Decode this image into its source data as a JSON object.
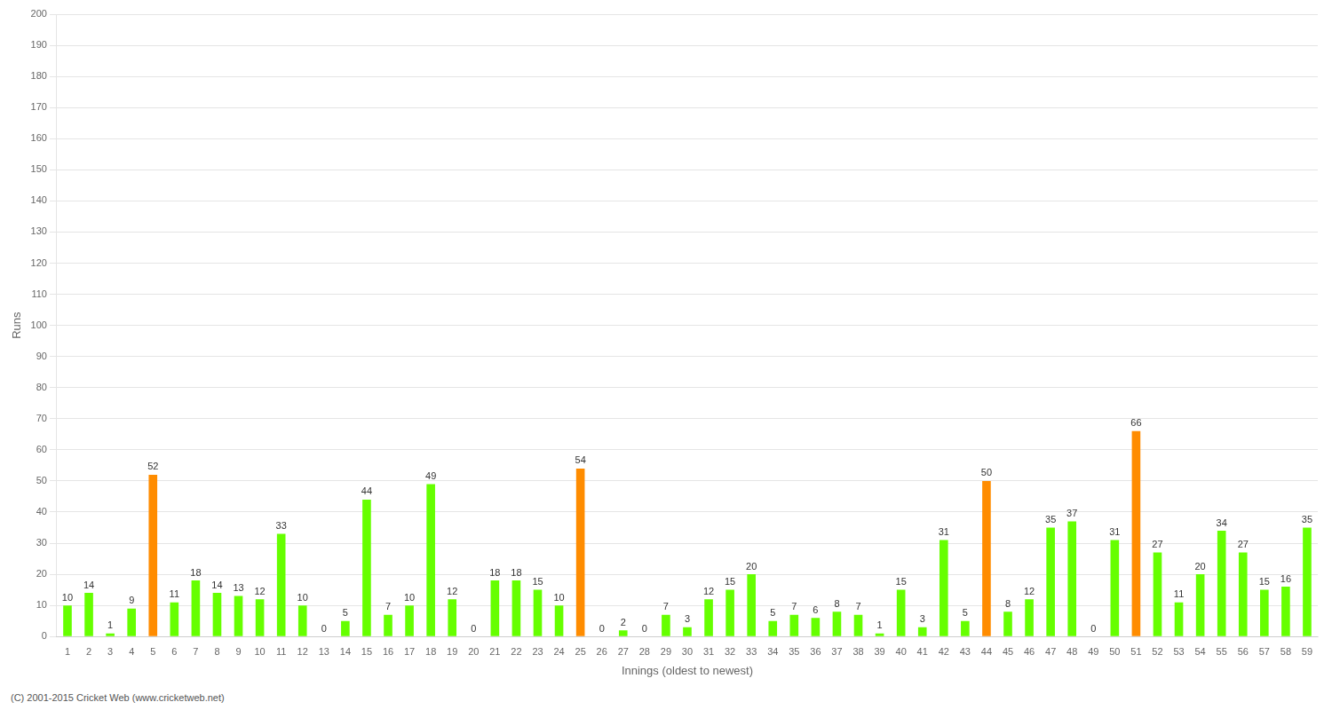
{
  "chart_data": {
    "type": "bar",
    "xlabel": "Innings (oldest to newest)",
    "ylabel": "Runs",
    "categories": [
      "1",
      "2",
      "3",
      "4",
      "5",
      "6",
      "7",
      "8",
      "9",
      "10",
      "11",
      "12",
      "13",
      "14",
      "15",
      "16",
      "17",
      "18",
      "19",
      "20",
      "21",
      "22",
      "23",
      "24",
      "25",
      "26",
      "27",
      "28",
      "29",
      "30",
      "31",
      "32",
      "33",
      "34",
      "35",
      "36",
      "37",
      "38",
      "39",
      "40",
      "41",
      "42",
      "43",
      "44",
      "45",
      "46",
      "47",
      "48",
      "49",
      "50",
      "51",
      "52",
      "53",
      "54",
      "55",
      "56",
      "57",
      "58",
      "59"
    ],
    "values": [
      10,
      14,
      1,
      9,
      52,
      11,
      18,
      14,
      13,
      12,
      33,
      10,
      0,
      5,
      44,
      7,
      10,
      49,
      12,
      0,
      18,
      18,
      15,
      10,
      54,
      0,
      2,
      0,
      7,
      3,
      12,
      15,
      20,
      5,
      7,
      6,
      8,
      7,
      1,
      15,
      3,
      31,
      5,
      50,
      8,
      12,
      35,
      37,
      0,
      31,
      66,
      27,
      11,
      20,
      34,
      27,
      15,
      16,
      35
    ],
    "colors": [
      "#66ff00",
      "#66ff00",
      "#66ff00",
      "#66ff00",
      "#ff8c00",
      "#66ff00",
      "#66ff00",
      "#66ff00",
      "#66ff00",
      "#66ff00",
      "#66ff00",
      "#66ff00",
      "#66ff00",
      "#66ff00",
      "#66ff00",
      "#66ff00",
      "#66ff00",
      "#66ff00",
      "#66ff00",
      "#66ff00",
      "#66ff00",
      "#66ff00",
      "#66ff00",
      "#66ff00",
      "#ff8c00",
      "#66ff00",
      "#66ff00",
      "#66ff00",
      "#66ff00",
      "#66ff00",
      "#66ff00",
      "#66ff00",
      "#66ff00",
      "#66ff00",
      "#66ff00",
      "#66ff00",
      "#66ff00",
      "#66ff00",
      "#66ff00",
      "#66ff00",
      "#66ff00",
      "#66ff00",
      "#66ff00",
      "#ff8c00",
      "#66ff00",
      "#66ff00",
      "#66ff00",
      "#66ff00",
      "#66ff00",
      "#66ff00",
      "#ff8c00",
      "#66ff00",
      "#66ff00",
      "#66ff00",
      "#66ff00",
      "#66ff00",
      "#66ff00",
      "#66ff00",
      "#66ff00"
    ],
    "ylim": [
      0,
      200
    ],
    "yticks": [
      0,
      10,
      20,
      30,
      40,
      50,
      60,
      70,
      80,
      90,
      100,
      110,
      120,
      130,
      140,
      150,
      160,
      170,
      180,
      190,
      200
    ],
    "grid": true,
    "data_labels": true,
    "annotations": [
      "(C) 2001-2015 Cricket Web (www.cricketweb.net)"
    ]
  }
}
